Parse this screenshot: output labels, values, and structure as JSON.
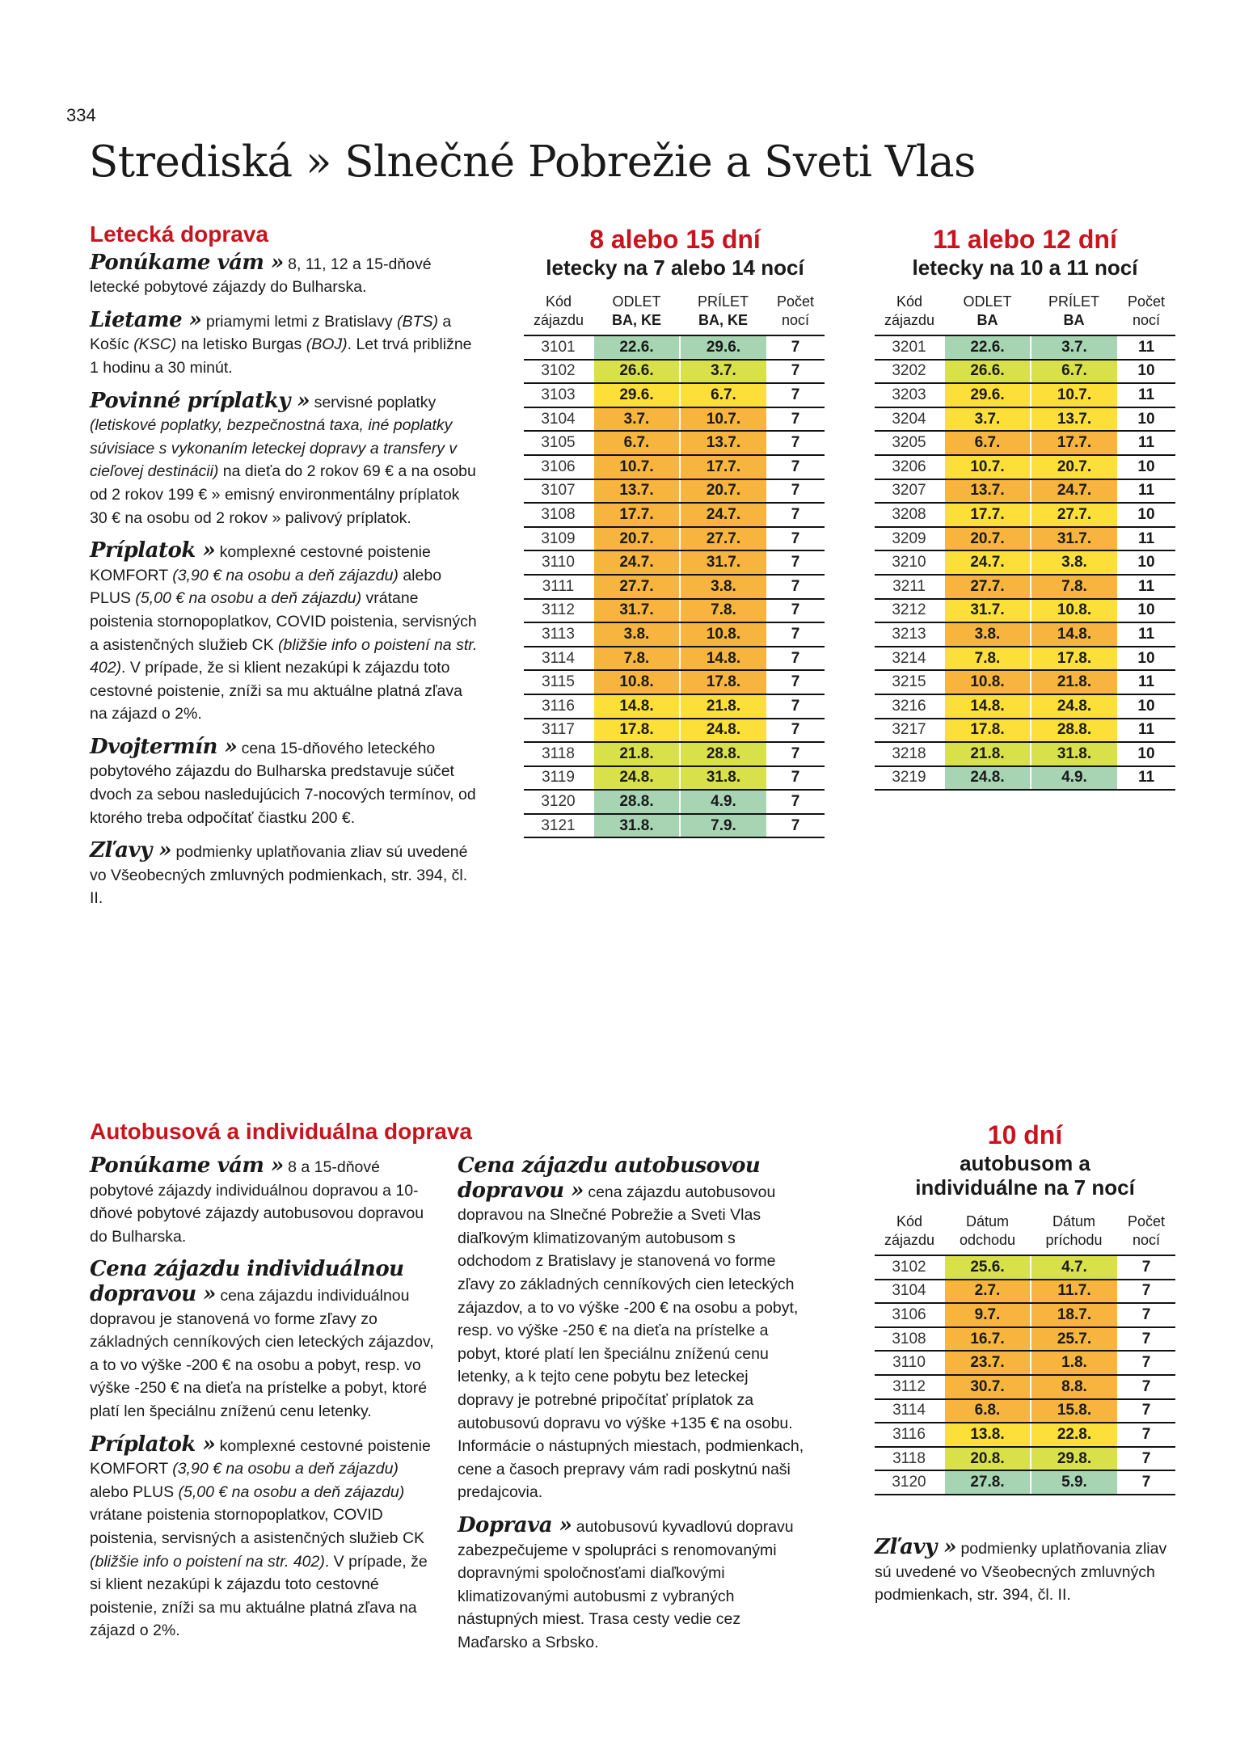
{
  "page_number": "334",
  "title": "Strediská » Slnečné Pobrežie a Sveti Vlas",
  "colors": {
    "green": "#a7d5b4",
    "lime": "#d9e14a",
    "yellow": "#fddf3a",
    "orange": "#f7b43e",
    "accent": "#c8141e"
  },
  "air": {
    "heading": "Letecká doprava",
    "paragraphs": [
      {
        "lead": "Ponúkame vám »",
        "segs": [
          {
            "t": " 8, 11, 12 a 15-dňové letecké pobytové zájazdy do Bulharska."
          }
        ]
      },
      {
        "lead": "Lietame »",
        "segs": [
          {
            "t": " priamymi letmi z Bratislavy "
          },
          {
            "t": "(BTS)",
            "i": true
          },
          {
            "t": " a Košíc "
          },
          {
            "t": "(KSC)",
            "i": true
          },
          {
            "t": " na letisko Burgas "
          },
          {
            "t": "(BOJ)",
            "i": true
          },
          {
            "t": ". Let trvá približne 1 hodinu a 30 minút."
          }
        ]
      },
      {
        "lead": "Povinné príplatky »",
        "segs": [
          {
            "t": " servisné poplatky "
          },
          {
            "t": "(letiskové poplatky, bezpečnostná taxa, iné poplatky súvisiace s vykonaním leteckej dopravy a transfery v cieľovej destinácii)",
            "i": true
          },
          {
            "t": " na dieťa do 2 rokov 69 € a na osobu od 2 rokov 199 € » emisný environmentálny príplatok 30 € na osobu od 2 rokov » palivový príplatok."
          }
        ]
      },
      {
        "lead": "Príplatok »",
        "segs": [
          {
            "t": " komplexné cestovné poistenie KOMFORT "
          },
          {
            "t": "(3,90 € na osobu a deň zájazdu)",
            "i": true
          },
          {
            "t": " alebo PLUS "
          },
          {
            "t": "(5,00 € na osobu a deň zájazdu)",
            "i": true
          },
          {
            "t": " vrátane poistenia stornopoplatkov, COVID poistenia, servisných a asistenčných služieb CK "
          },
          {
            "t": "(bližšie info o poistení na str. 402)",
            "i": true
          },
          {
            "t": ". V prípade, že si klient nezakúpi k zájazdu toto cestovné poistenie, zníži sa mu aktuálne platná zľava na zájazd o 2%."
          }
        ]
      },
      {
        "lead": "Dvojtermín »",
        "segs": [
          {
            "t": " cena 15-dňového leteckého pobytového zájazdu do Bulharska predstavuje súčet dvoch za sebou nasledujúcich 7-nocových termínov, od ktorého treba odpočítať čiastku 200 €."
          }
        ]
      },
      {
        "lead": "Zľavy »",
        "segs": [
          {
            "t": " podmienky uplatňovania zliav sú uvedené vo Všeobecných zmluvných podmienkach, str. 394, čl. II."
          }
        ]
      }
    ]
  },
  "table1": {
    "title": "8 alebo 15 dní",
    "subtitle": "letecky na 7 alebo 14 nocí",
    "headers": [
      [
        "Kód",
        "zájazdu"
      ],
      [
        "ODLET",
        "BA, KE"
      ],
      [
        "PRÍLET",
        "BA, KE"
      ],
      [
        "Počet",
        "nocí"
      ]
    ],
    "rows": [
      [
        "3101",
        "22.6.",
        "29.6.",
        "7",
        "green"
      ],
      [
        "3102",
        "26.6.",
        "3.7.",
        "7",
        "lime"
      ],
      [
        "3103",
        "29.6.",
        "6.7.",
        "7",
        "yellow"
      ],
      [
        "3104",
        "3.7.",
        "10.7.",
        "7",
        "orange"
      ],
      [
        "3105",
        "6.7.",
        "13.7.",
        "7",
        "orange"
      ],
      [
        "3106",
        "10.7.",
        "17.7.",
        "7",
        "orange"
      ],
      [
        "3107",
        "13.7.",
        "20.7.",
        "7",
        "orange"
      ],
      [
        "3108",
        "17.7.",
        "24.7.",
        "7",
        "orange"
      ],
      [
        "3109",
        "20.7.",
        "27.7.",
        "7",
        "orange"
      ],
      [
        "3110",
        "24.7.",
        "31.7.",
        "7",
        "orange"
      ],
      [
        "3111",
        "27.7.",
        "3.8.",
        "7",
        "orange"
      ],
      [
        "3112",
        "31.7.",
        "7.8.",
        "7",
        "orange"
      ],
      [
        "3113",
        "3.8.",
        "10.8.",
        "7",
        "orange"
      ],
      [
        "3114",
        "7.8.",
        "14.8.",
        "7",
        "orange"
      ],
      [
        "3115",
        "10.8.",
        "17.8.",
        "7",
        "orange"
      ],
      [
        "3116",
        "14.8.",
        "21.8.",
        "7",
        "yellow"
      ],
      [
        "3117",
        "17.8.",
        "24.8.",
        "7",
        "yellow"
      ],
      [
        "3118",
        "21.8.",
        "28.8.",
        "7",
        "lime"
      ],
      [
        "3119",
        "24.8.",
        "31.8.",
        "7",
        "lime"
      ],
      [
        "3120",
        "28.8.",
        "4.9.",
        "7",
        "green"
      ],
      [
        "3121",
        "31.8.",
        "7.9.",
        "7",
        "green"
      ]
    ]
  },
  "table2": {
    "title": "11 alebo 12 dní",
    "subtitle": "letecky na 10 a 11 nocí",
    "headers": [
      [
        "Kód",
        "zájazdu"
      ],
      [
        "ODLET",
        "BA"
      ],
      [
        "PRÍLET",
        "BA"
      ],
      [
        "Počet",
        "nocí"
      ]
    ],
    "rows": [
      [
        "3201",
        "22.6.",
        "3.7.",
        "11",
        "green"
      ],
      [
        "3202",
        "26.6.",
        "6.7.",
        "10",
        "lime"
      ],
      [
        "3203",
        "29.6.",
        "10.7.",
        "11",
        "yellow"
      ],
      [
        "3204",
        "3.7.",
        "13.7.",
        "10",
        "yellow"
      ],
      [
        "3205",
        "6.7.",
        "17.7.",
        "11",
        "orange"
      ],
      [
        "3206",
        "10.7.",
        "20.7.",
        "10",
        "yellow"
      ],
      [
        "3207",
        "13.7.",
        "24.7.",
        "11",
        "orange"
      ],
      [
        "3208",
        "17.7.",
        "27.7.",
        "10",
        "yellow"
      ],
      [
        "3209",
        "20.7.",
        "31.7.",
        "11",
        "orange"
      ],
      [
        "3210",
        "24.7.",
        "3.8.",
        "10",
        "yellow"
      ],
      [
        "3211",
        "27.7.",
        "7.8.",
        "11",
        "orange"
      ],
      [
        "3212",
        "31.7.",
        "10.8.",
        "10",
        "yellow"
      ],
      [
        "3213",
        "3.8.",
        "14.8.",
        "11",
        "orange"
      ],
      [
        "3214",
        "7.8.",
        "17.8.",
        "10",
        "yellow"
      ],
      [
        "3215",
        "10.8.",
        "21.8.",
        "11",
        "orange"
      ],
      [
        "3216",
        "14.8.",
        "24.8.",
        "10",
        "yellow"
      ],
      [
        "3217",
        "17.8.",
        "28.8.",
        "11",
        "yellow"
      ],
      [
        "3218",
        "21.8.",
        "31.8.",
        "10",
        "lime"
      ],
      [
        "3219",
        "24.8.",
        "4.9.",
        "11",
        "green"
      ]
    ]
  },
  "bus": {
    "heading": "Autobusová a individuálna doprava",
    "left": [
      {
        "lead": "Ponúkame vám »",
        "segs": [
          {
            "t": " 8 a 15-dňové pobytové zájazdy individuálnou dopravou a 10-dňové pobytové zájazdy autobusovou dopravou do Bulharska."
          }
        ]
      },
      {
        "lead": "Cena zájazdu individuálnou dopravou »",
        "segs": [
          {
            "t": " cena zájazdu individuálnou dopravou je stanovená vo forme zľavy zo základných cenníkových cien leteckých zájazdov, a to vo výške -200 € na osobu a pobyt, resp. vo výške -250 € na dieťa na prístelke a pobyt, ktoré platí len špeciálnu zníženú cenu letenky."
          }
        ]
      },
      {
        "lead": "Príplatok »",
        "segs": [
          {
            "t": " komplexné cestovné poistenie KOMFORT "
          },
          {
            "t": "(3,90 € na osobu a deň zájazdu)",
            "i": true
          },
          {
            "t": " alebo PLUS "
          },
          {
            "t": "(5,00 € na osobu a deň zájazdu)",
            "i": true
          },
          {
            "t": " vrátane poistenia stornopoplatkov, COVID poistenia, servisných a asistenčných služieb CK "
          },
          {
            "t": "(bližšie info o poistení na str. 402)",
            "i": true
          },
          {
            "t": ". V prípade, že si klient nezakúpi k zájazdu toto cestovné poistenie, zníži sa mu aktuálne platná zľava na zájazd o 2%."
          }
        ]
      }
    ],
    "middle": [
      {
        "lead": "Cena zájazdu autobusovou dopravou »",
        "segs": [
          {
            "t": " cena zájazdu autobusovou dopravou na Slnečné Pobrežie a Sveti Vlas diaľkovým klimatizovaným autobusom s odchodom z Bratislavy je stanovená vo forme zľavy zo základných cenníkových cien leteckých zájazdov, a to vo výške -200 € na osobu a pobyt, resp. vo výške -250 € na dieťa na prístelke a pobyt, ktoré platí len špeciálnu zníženú cenu letenky, a k tejto cene pobytu bez leteckej dopravy je potrebné pripočítať príplatok za autobusovú dopravu vo výške +135 € na osobu. Informácie o nástupných miestach, podmienkach, cene a časoch prepravy vám radi poskytnú naši predajcovia."
          }
        ]
      },
      {
        "lead": "Doprava »",
        "segs": [
          {
            "t": " autobusovú kyvadlovú dopravu zabezpečujeme v spolupráci s renomovanými dopravnými spoločnosťami diaľkovými klimatizovanými autobusmi z vybraných nástupných miest. Trasa cesty vedie cez Maďarsko a Srbsko."
          }
        ]
      }
    ],
    "right": [
      {
        "lead": "Zľavy »",
        "segs": [
          {
            "t": " podmienky uplatňovania zliav sú uvedené vo Všeobecných zmluvných podmienkach, str. 394, čl. II."
          }
        ]
      }
    ]
  },
  "table3": {
    "title": "10 dní",
    "subtitle": "autobusom a individuálne na 7 nocí",
    "headers": [
      [
        "Kód",
        "zájazdu"
      ],
      [
        "Dátum",
        "odchodu"
      ],
      [
        "Dátum",
        "príchodu"
      ],
      [
        "Počet",
        "nocí"
      ]
    ],
    "rows": [
      [
        "3102",
        "25.6.",
        "4.7.",
        "7",
        "lime"
      ],
      [
        "3104",
        "2.7.",
        "11.7.",
        "7",
        "orange"
      ],
      [
        "3106",
        "9.7.",
        "18.7.",
        "7",
        "orange"
      ],
      [
        "3108",
        "16.7.",
        "25.7.",
        "7",
        "orange"
      ],
      [
        "3110",
        "23.7.",
        "1.8.",
        "7",
        "orange"
      ],
      [
        "3112",
        "30.7.",
        "8.8.",
        "7",
        "orange"
      ],
      [
        "3114",
        "6.8.",
        "15.8.",
        "7",
        "orange"
      ],
      [
        "3116",
        "13.8.",
        "22.8.",
        "7",
        "yellow"
      ],
      [
        "3118",
        "20.8.",
        "29.8.",
        "7",
        "lime"
      ],
      [
        "3120",
        "27.8.",
        "5.9.",
        "7",
        "green"
      ]
    ]
  }
}
